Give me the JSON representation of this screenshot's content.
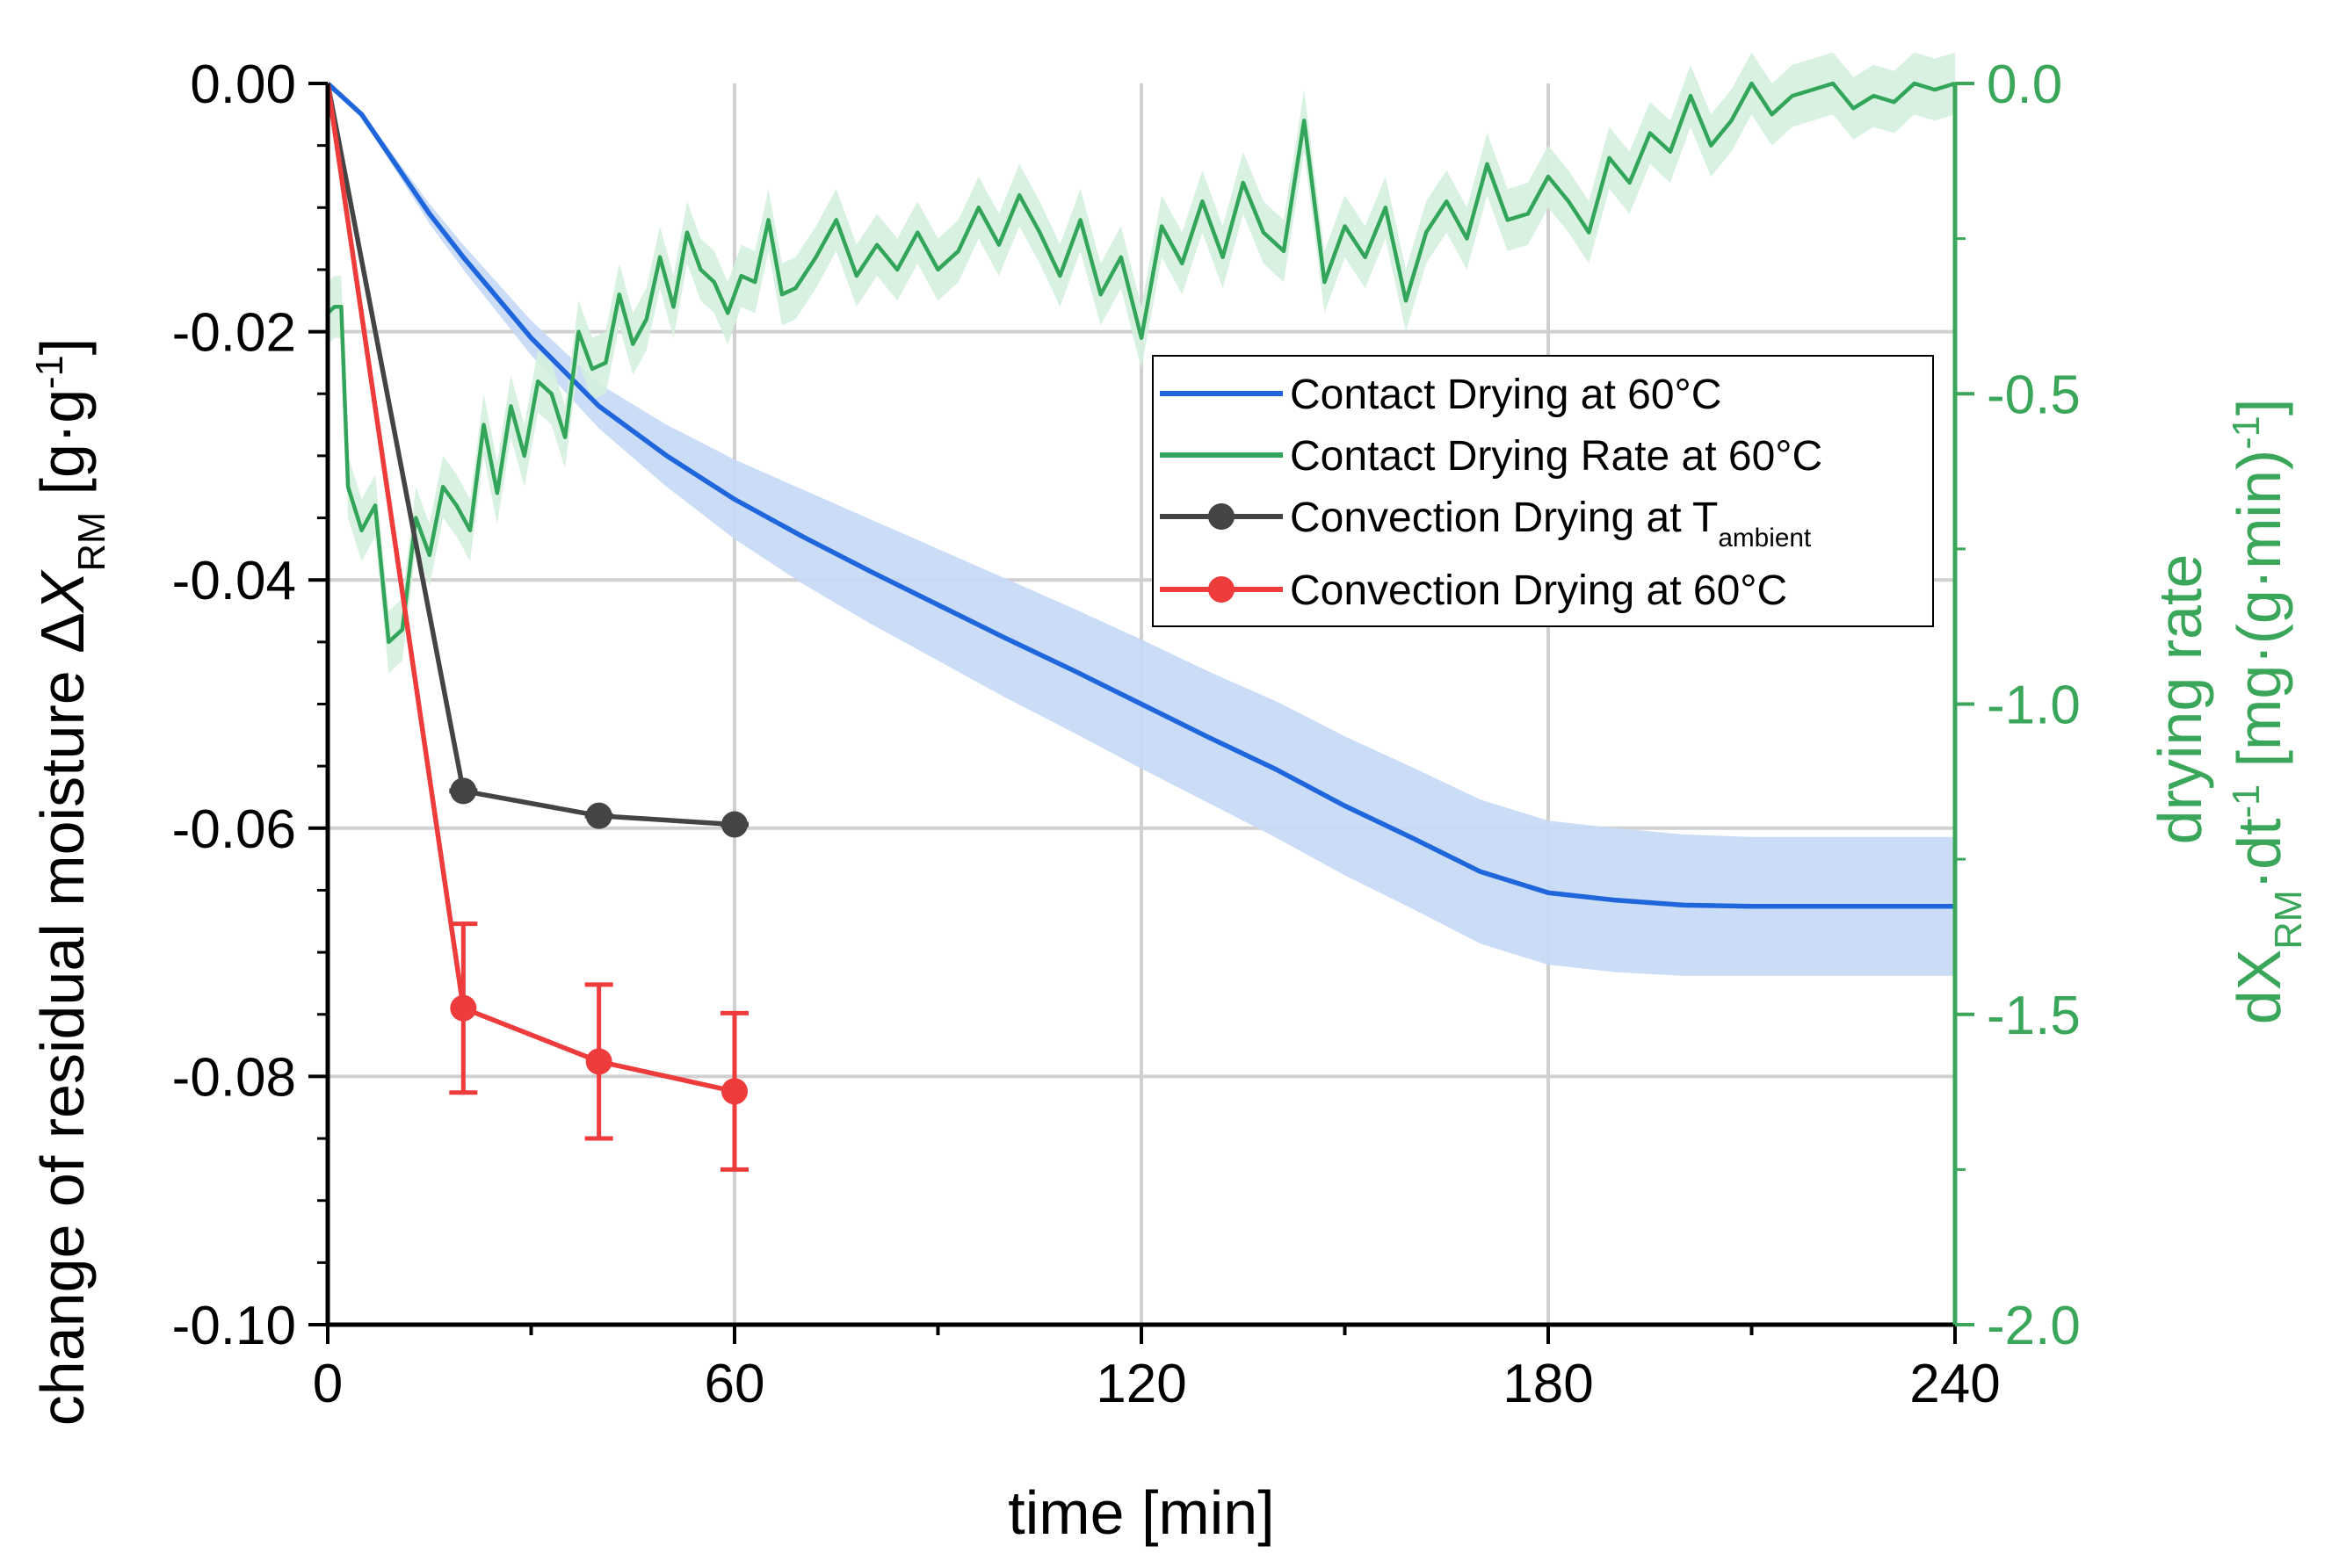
{
  "chart_data": {
    "type": "line",
    "x_axis": {
      "label": "time [min]",
      "range": [
        0,
        240
      ],
      "ticks": [
        "0",
        "60",
        "120",
        "180",
        "240"
      ],
      "tick_values": [
        0,
        60,
        120,
        180,
        240
      ]
    },
    "y_left": {
      "label_prefix": "change of residual moisture Δ",
      "label_var": "X",
      "label_sub": "RM",
      "label_unit_open": " [g·g",
      "label_sup": "-1",
      "label_unit_close": "]",
      "range": [
        -0.1,
        0.0
      ],
      "ticks": [
        "0.00",
        "-0.02",
        "-0.04",
        "-0.06",
        "-0.08",
        "-0.10"
      ],
      "tick_values": [
        0.0,
        -0.02,
        -0.04,
        -0.06,
        -0.08,
        -0.1
      ]
    },
    "y_right": {
      "label_line1": "drying rate",
      "label_line2_prefix": "dX",
      "label_line2_sub": "RM",
      "label_line2_mid": "·dt",
      "label_line2_sup1": "-1",
      "label_line2_unit": " [mg·(g·min)",
      "label_line2_sup2": "-1",
      "label_line2_close": "]",
      "range": [
        -2.0,
        0.0
      ],
      "ticks": [
        "0.0",
        "-0.5",
        "-1.0",
        "-1.5",
        "-2.0"
      ],
      "tick_values": [
        0.0,
        -0.5,
        -1.0,
        -1.5,
        -2.0
      ],
      "color": "#3aa659"
    },
    "grid": true,
    "legend": {
      "position": "top-right",
      "entries": [
        {
          "label": "Contact Drying at 60°C",
          "sub": "",
          "color": "#1f66dd",
          "marker": false
        },
        {
          "label": "Contact Drying Rate at 60°C",
          "sub": "",
          "color": "#33a55a",
          "marker": false
        },
        {
          "label": "Convection Drying at T",
          "sub": "ambient",
          "color": "#444444",
          "marker": true
        },
        {
          "label": "Convection Drying at 60°C",
          "sub": "",
          "color": "#ee3b3b",
          "marker": true
        }
      ]
    },
    "series": [
      {
        "name": "Contact Drying at 60°C",
        "axis": "left",
        "color": "#1f66dd",
        "band_color": "#c5d9f5",
        "x": [
          0,
          5,
          10,
          15,
          20,
          30,
          40,
          50,
          60,
          70,
          80,
          90,
          100,
          110,
          120,
          130,
          140,
          150,
          160,
          170,
          180,
          190,
          200,
          210,
          220,
          230,
          240
        ],
        "y": [
          0.0,
          -0.0025,
          -0.0065,
          -0.0105,
          -0.014,
          -0.0205,
          -0.026,
          -0.03,
          -0.0335,
          -0.0365,
          -0.0393,
          -0.042,
          -0.0447,
          -0.0473,
          -0.05,
          -0.0527,
          -0.0553,
          -0.0582,
          -0.0608,
          -0.0635,
          -0.0652,
          -0.0658,
          -0.0662,
          -0.0663,
          -0.0663,
          -0.0663,
          -0.0663
        ],
        "band": [
          0.0,
          0.0002,
          0.0005,
          0.0008,
          0.001,
          0.0014,
          0.0018,
          0.0025,
          0.0032,
          0.0038,
          0.0042,
          0.0045,
          0.0048,
          0.005,
          0.0052,
          0.0053,
          0.0055,
          0.0056,
          0.0057,
          0.0058,
          0.0058,
          0.0058,
          0.0057,
          0.0056,
          0.0056,
          0.0056,
          0.0056
        ]
      },
      {
        "name": "Contact Drying Rate at 60°C",
        "axis": "right",
        "color": "#33a55a",
        "band_color": "#d4efdd",
        "x": [
          0,
          1,
          2,
          3,
          5,
          7,
          9,
          11,
          13,
          15,
          17,
          19,
          21,
          23,
          25,
          27,
          29,
          31,
          33,
          35,
          37,
          39,
          41,
          43,
          45,
          47,
          49,
          51,
          53,
          55,
          57,
          59,
          61,
          63,
          65,
          67,
          69,
          72,
          75,
          78,
          81,
          84,
          87,
          90,
          93,
          96,
          99,
          102,
          105,
          108,
          111,
          114,
          117,
          120,
          123,
          126,
          129,
          132,
          135,
          138,
          141,
          144,
          147,
          150,
          153,
          156,
          159,
          162,
          165,
          168,
          171,
          174,
          177,
          180,
          183,
          186,
          189,
          192,
          195,
          198,
          201,
          204,
          207,
          210,
          213,
          216,
          219,
          222,
          225,
          228,
          231,
          234,
          237,
          240
        ],
        "y": [
          -0.37,
          -0.36,
          -0.36,
          -0.65,
          -0.72,
          -0.68,
          -0.9,
          -0.88,
          -0.7,
          -0.76,
          -0.65,
          -0.68,
          -0.72,
          -0.55,
          -0.66,
          -0.52,
          -0.6,
          -0.48,
          -0.5,
          -0.57,
          -0.4,
          -0.46,
          -0.45,
          -0.34,
          -0.42,
          -0.38,
          -0.28,
          -0.36,
          -0.24,
          -0.3,
          -0.32,
          -0.37,
          -0.31,
          -0.32,
          -0.22,
          -0.34,
          -0.33,
          -0.28,
          -0.22,
          -0.31,
          -0.26,
          -0.3,
          -0.24,
          -0.3,
          -0.27,
          -0.2,
          -0.26,
          -0.18,
          -0.24,
          -0.31,
          -0.22,
          -0.34,
          -0.28,
          -0.41,
          -0.23,
          -0.29,
          -0.19,
          -0.28,
          -0.16,
          -0.24,
          -0.27,
          -0.06,
          -0.32,
          -0.23,
          -0.28,
          -0.2,
          -0.35,
          -0.24,
          -0.19,
          -0.25,
          -0.13,
          -0.22,
          -0.21,
          -0.15,
          -0.19,
          -0.24,
          -0.12,
          -0.16,
          -0.08,
          -0.11,
          -0.02,
          -0.1,
          -0.06,
          0.0,
          -0.05,
          -0.02,
          -0.01,
          0.0,
          -0.04,
          -0.02,
          -0.03,
          0.0,
          -0.01,
          0.0
        ],
        "band": 0.05
      },
      {
        "name": "Convection Drying at T_ambient",
        "axis": "left",
        "color": "#444444",
        "x": [
          0,
          20,
          40,
          60
        ],
        "y": [
          0.0,
          -0.057,
          -0.059,
          -0.0597
        ],
        "err": [
          0,
          0.0003,
          0.0008,
          0.0007
        ]
      },
      {
        "name": "Convection Drying at 60°C",
        "axis": "left",
        "color": "#ee3b3b",
        "x": [
          0,
          20,
          40,
          60
        ],
        "y": [
          0.0,
          -0.0745,
          -0.0788,
          -0.0812
        ],
        "err": [
          0,
          0.0068,
          0.0062,
          0.0063
        ]
      }
    ]
  }
}
